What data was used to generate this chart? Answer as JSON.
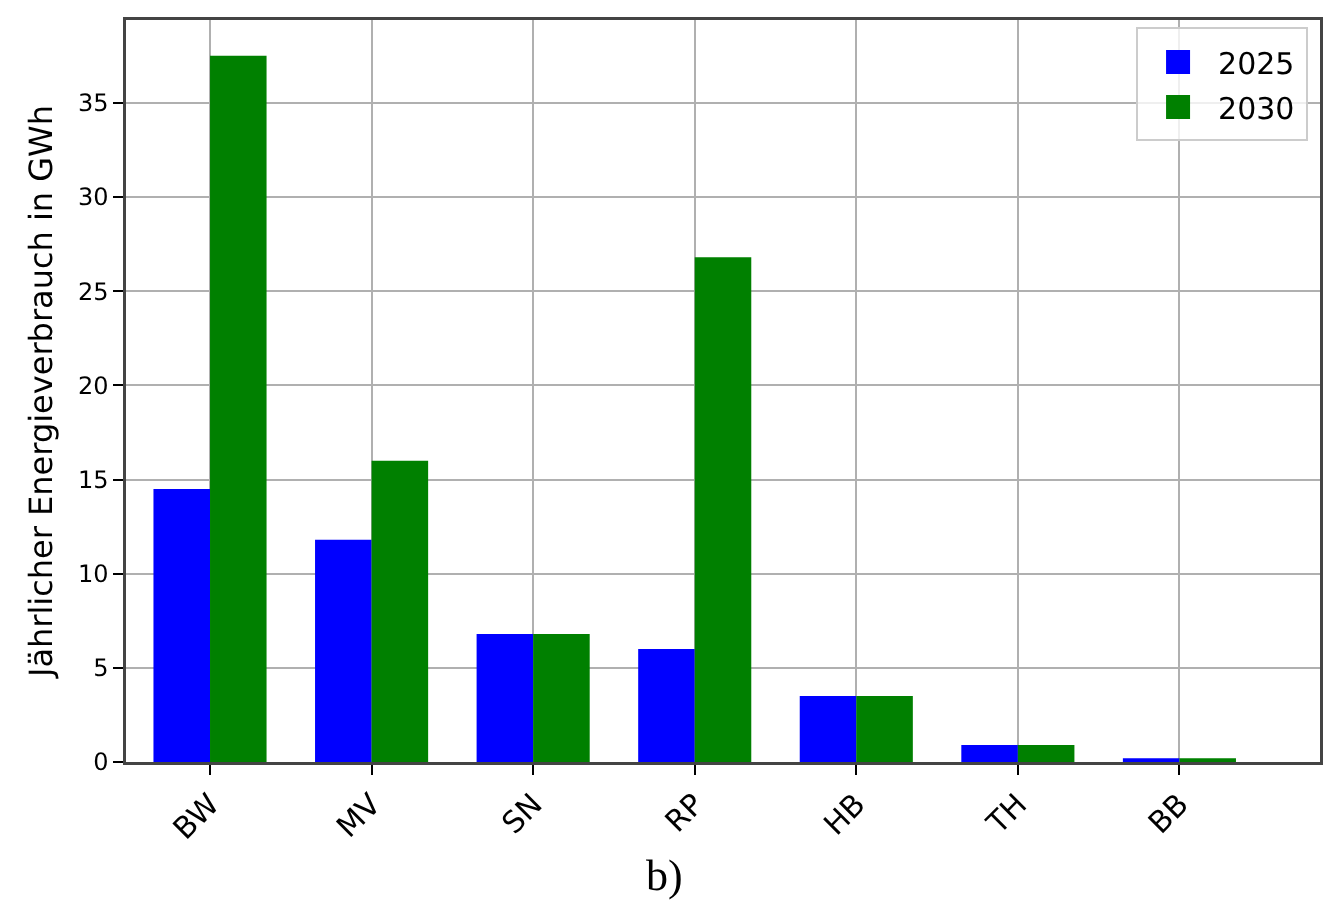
{
  "chart_data": {
    "type": "bar",
    "categories": [
      "BW",
      "MV",
      "SN",
      "RP",
      "HB",
      "TH",
      "BB"
    ],
    "series": [
      {
        "name": "2025",
        "color": "#0000ff",
        "values": [
          14.5,
          11.8,
          6.8,
          6.0,
          3.5,
          0.9,
          0.2
        ]
      },
      {
        "name": "2030",
        "color": "#008000",
        "values": [
          37.5,
          16.0,
          6.8,
          26.8,
          3.5,
          0.9,
          0.2
        ]
      }
    ],
    "ylabel": "Jährlicher Energieverbrauch in GWh",
    "annotations": [
      "b)"
    ],
    "ylim": [
      0,
      39.4
    ],
    "yticks": [
      0,
      5,
      10,
      15,
      20,
      25,
      30,
      35
    ],
    "grid": true,
    "legend": "top right"
  }
}
